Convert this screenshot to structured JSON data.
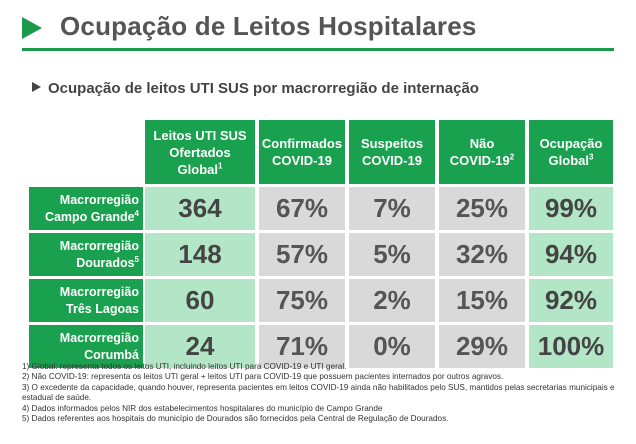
{
  "header": {
    "title": "Ocupação de Leitos Hospitalares"
  },
  "subtitle": "Ocupação de leitos UTI SUS por macrorregião de internação",
  "table": {
    "columns": [
      {
        "lines": [
          "Leitos UTI SUS",
          "Ofertados"
        ],
        "last": "Global",
        "sup": "1"
      },
      {
        "lines": [
          "Confirmados"
        ],
        "last": "COVID-19",
        "sup": ""
      },
      {
        "lines": [
          "Suspeitos"
        ],
        "last": "COVID-19",
        "sup": ""
      },
      {
        "lines": [
          "Não"
        ],
        "last": "COVID-19",
        "sup": "2"
      },
      {
        "lines": [
          "Ocupação"
        ],
        "last": "Global",
        "sup": "3"
      }
    ],
    "rows": [
      {
        "line1": "Macrorregião",
        "line2": "Campo Grande",
        "sup": "4",
        "values": [
          "364",
          "67%",
          "7%",
          "25%",
          "99%"
        ]
      },
      {
        "line1": "Macrorregião",
        "line2": "Dourados",
        "sup": "5",
        "values": [
          "148",
          "57%",
          "5%",
          "32%",
          "94%"
        ]
      },
      {
        "line1": "Macrorregião",
        "line2": "Três Lagoas",
        "sup": "",
        "values": [
          "60",
          "75%",
          "2%",
          "15%",
          "92%"
        ]
      },
      {
        "line1": "Macrorregião",
        "line2": "Corumbá",
        "sup": "",
        "values": [
          "24",
          "71%",
          "0%",
          "29%",
          "100%"
        ]
      }
    ]
  },
  "notes": [
    "1) Global: representa todos os leitos UTI, incluindo leitos UTI para COVID-19 e UTI geral.",
    "2) Não COVID-19: representa os leitos UTI geral + leitos UTI para COVID-19 que possuem pacientes internados por outros agravos.",
    "3) O excedente da capacidade, quando houver, representa pacientes em leitos COVID-19 ainda não habilitados pelo SUS, mantidos pelas secretarias municipais e estadual de saúde.",
    "4) Dados informados pelos NIR dos estabelecimentos hospitalares do município de Campo Grande",
    "5) Dados referentes aos hospitais do município de Dourados são fornecidos pela Central de Regulação de Dourados."
  ],
  "colors": {
    "accent": "#1aa14f",
    "value_green": "#b3e6c6",
    "value_gray": "#d9d9d9"
  }
}
